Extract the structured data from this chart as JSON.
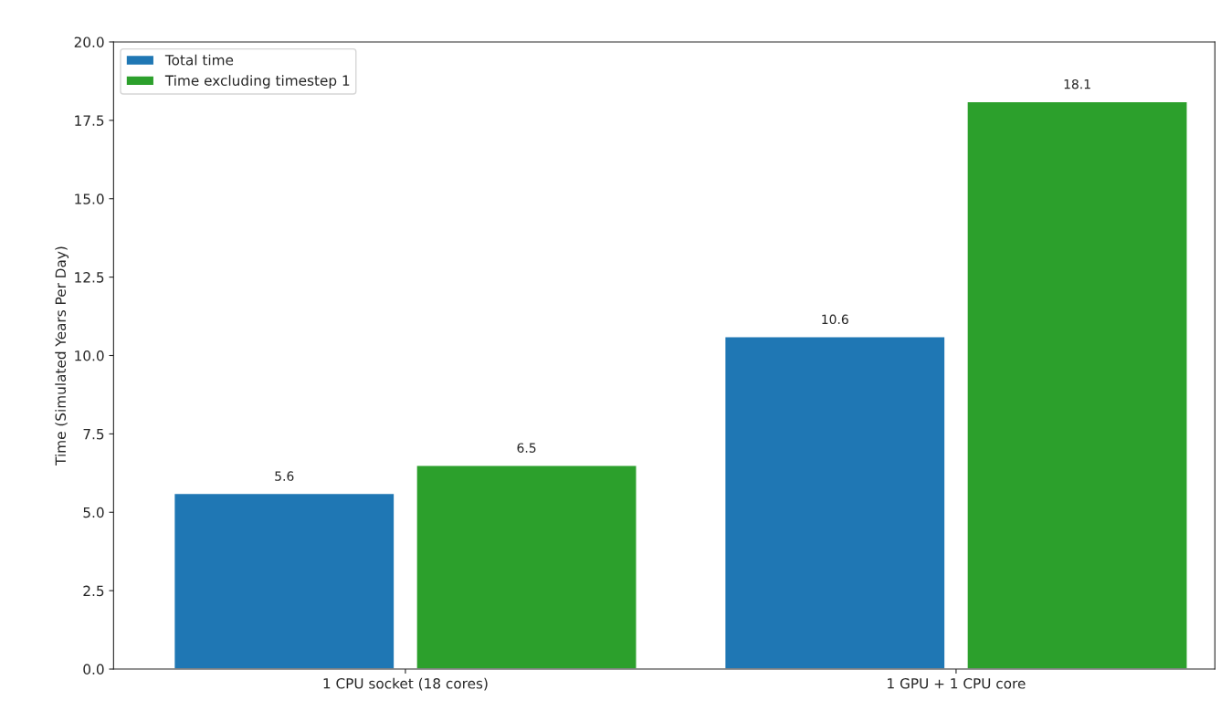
{
  "chart_data": {
    "type": "bar",
    "ylabel": "Time (Simulated Years Per Day)",
    "categories": [
      "1 CPU socket (18 cores)",
      "1 GPU + 1 CPU core"
    ],
    "series": [
      {
        "name": "Total time",
        "color": "#1f77b4",
        "values": [
          5.6,
          10.6
        ]
      },
      {
        "name": "Time excluding timestep 1",
        "color": "#2ca02c",
        "values": [
          6.5,
          18.1
        ]
      }
    ],
    "ylim": [
      0,
      20
    ],
    "yticks": [
      {
        "value": 0,
        "label": "0.0"
      },
      {
        "value": 2.5,
        "label": "2.5"
      },
      {
        "value": 5,
        "label": "5.0"
      },
      {
        "value": 7.5,
        "label": "7.5"
      },
      {
        "value": 10,
        "label": "10.0"
      },
      {
        "value": 12.5,
        "label": "12.5"
      },
      {
        "value": 15,
        "label": "15.0"
      },
      {
        "value": 17.5,
        "label": "17.5"
      },
      {
        "value": 20,
        "label": "20.0"
      }
    ],
    "data_labels": true,
    "legend": "top left",
    "grid": false
  }
}
